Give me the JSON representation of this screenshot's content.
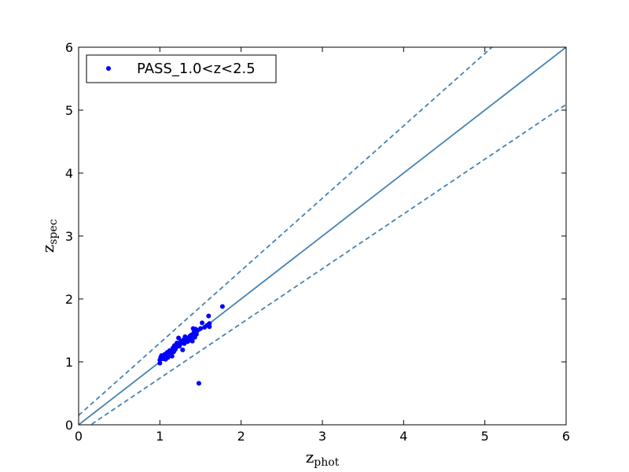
{
  "chart_data": {
    "type": "scatter",
    "xlabel": {
      "base": "z",
      "sub": "phot"
    },
    "ylabel": {
      "base": "z",
      "sub": "spec"
    },
    "xlim": [
      0,
      6
    ],
    "ylim": [
      0,
      6
    ],
    "xticks": [
      "0",
      "1",
      "2",
      "3",
      "4",
      "5",
      "6"
    ],
    "yticks": [
      "0",
      "1",
      "2",
      "3",
      "4",
      "5",
      "6"
    ],
    "grid": false,
    "legend": {
      "placement": "top-left",
      "entries": [
        "PASS_1.0<z<2.5"
      ]
    },
    "series": [
      {
        "name": "PASS_1.0<z<2.5",
        "color": "#0000ff",
        "marker": "circle",
        "points": [
          [
            1.0,
            0.98
          ],
          [
            1.0,
            1.03
          ],
          [
            1.01,
            1.07
          ],
          [
            1.02,
            1.1
          ],
          [
            1.04,
            1.05
          ],
          [
            1.05,
            1.08
          ],
          [
            1.06,
            1.12
          ],
          [
            1.07,
            1.04
          ],
          [
            1.08,
            1.1
          ],
          [
            1.09,
            1.15
          ],
          [
            1.1,
            1.07
          ],
          [
            1.11,
            1.12
          ],
          [
            1.12,
            1.18
          ],
          [
            1.13,
            1.1
          ],
          [
            1.14,
            1.14
          ],
          [
            1.15,
            1.09
          ],
          [
            1.16,
            1.22
          ],
          [
            1.17,
            1.16
          ],
          [
            1.18,
            1.26
          ],
          [
            1.19,
            1.2
          ],
          [
            1.2,
            1.24
          ],
          [
            1.21,
            1.3
          ],
          [
            1.22,
            1.27
          ],
          [
            1.23,
            1.38
          ],
          [
            1.24,
            1.25
          ],
          [
            1.25,
            1.29
          ],
          [
            1.26,
            1.33
          ],
          [
            1.27,
            1.31
          ],
          [
            1.28,
            1.19
          ],
          [
            1.29,
            1.35
          ],
          [
            1.3,
            1.29
          ],
          [
            1.31,
            1.4
          ],
          [
            1.32,
            1.33
          ],
          [
            1.33,
            1.37
          ],
          [
            1.34,
            1.32
          ],
          [
            1.35,
            1.38
          ],
          [
            1.36,
            1.34
          ],
          [
            1.37,
            1.41
          ],
          [
            1.38,
            1.36
          ],
          [
            1.39,
            1.43
          ],
          [
            1.4,
            1.33
          ],
          [
            1.41,
            1.53
          ],
          [
            1.42,
            1.47
          ],
          [
            1.43,
            1.39
          ],
          [
            1.44,
            1.52
          ],
          [
            1.45,
            1.44
          ],
          [
            1.46,
            1.5
          ],
          [
            1.48,
            0.66
          ],
          [
            1.5,
            1.53
          ],
          [
            1.52,
            1.62
          ],
          [
            1.55,
            1.55
          ],
          [
            1.58,
            1.58
          ],
          [
            1.6,
            1.73
          ],
          [
            1.61,
            1.61
          ],
          [
            1.61,
            1.56
          ],
          [
            1.77,
            1.88
          ]
        ]
      }
    ],
    "reference_lines": [
      {
        "kind": "one-to-one",
        "style": "solid",
        "color": "#4682b4",
        "slope": 1.0,
        "intercept": 0.0
      },
      {
        "kind": "upper-bound",
        "style": "dashed",
        "color": "#4682b4",
        "slope": 1.15,
        "intercept": 0.15
      },
      {
        "kind": "lower-bound",
        "style": "dashed",
        "color": "#4682b4",
        "slope": 0.87,
        "intercept": -0.13
      }
    ]
  }
}
